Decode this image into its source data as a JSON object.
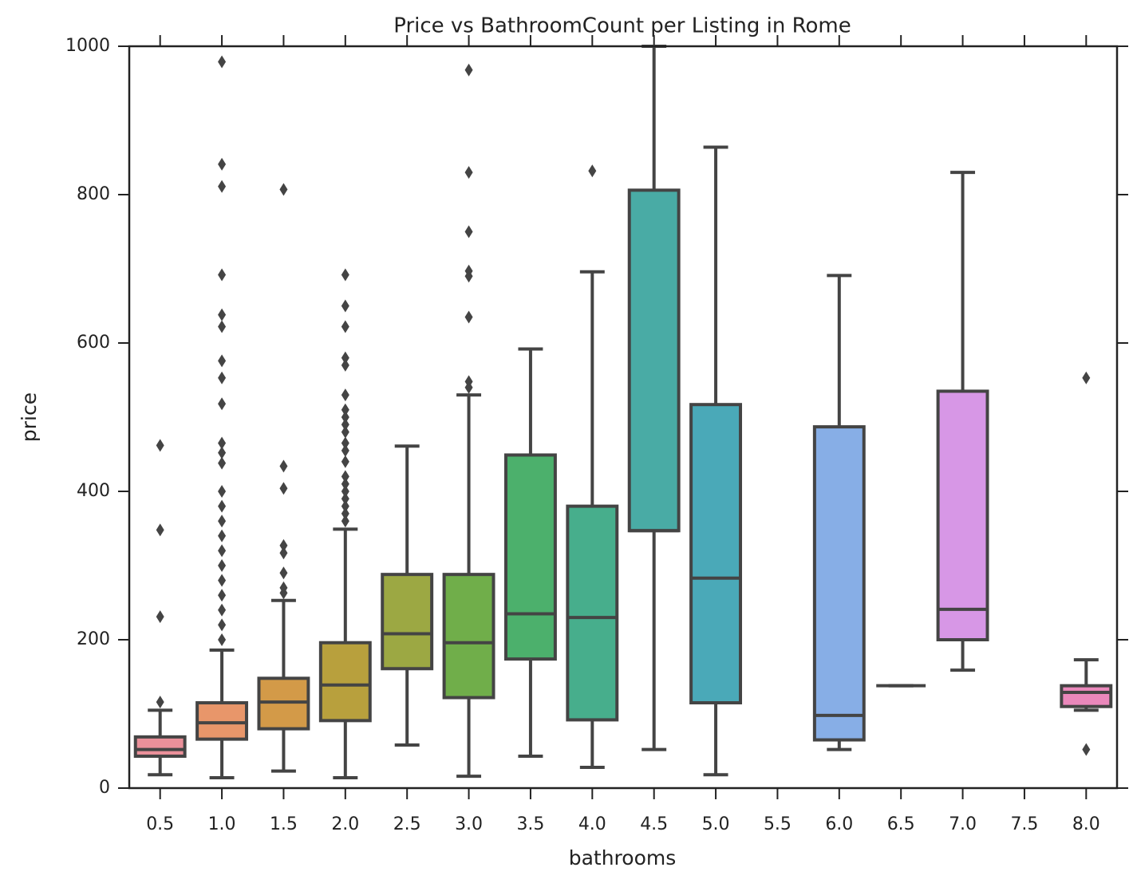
{
  "chart_data": {
    "type": "box",
    "title": "Price vs BathroomCount per Listing in Rome",
    "x_label": "bathrooms",
    "y_label": "price",
    "categories": [
      "0.5",
      "1.0",
      "1.5",
      "2.0",
      "2.5",
      "3.0",
      "3.5",
      "4.0",
      "4.5",
      "5.0",
      "5.5",
      "6.0",
      "6.5",
      "7.0",
      "7.5",
      "8.0"
    ],
    "whisker_low": [
      18,
      14,
      23,
      14,
      58,
      16,
      43,
      28,
      52,
      18,
      null,
      52,
      138,
      159,
      null,
      105
    ],
    "q1": [
      43,
      66,
      80,
      91,
      161,
      122,
      174,
      92,
      347,
      115,
      null,
      65,
      138,
      200,
      null,
      110
    ],
    "median": [
      52,
      88,
      116,
      139,
      208,
      196,
      235,
      230,
      347,
      283,
      null,
      98,
      138,
      241,
      null,
      129
    ],
    "q3": [
      69,
      115,
      148,
      196,
      288,
      288,
      449,
      380,
      806,
      517,
      null,
      487,
      138,
      535,
      null,
      138
    ],
    "whisker_high": [
      105,
      186,
      253,
      349,
      461,
      530,
      592,
      696,
      1000,
      864,
      null,
      691,
      138,
      830,
      null,
      173
    ],
    "outliers": [
      [
        116,
        231,
        348,
        462
      ],
      [
        200,
        220,
        240,
        260,
        280,
        300,
        320,
        340,
        360,
        380,
        400,
        438,
        452,
        465,
        518,
        553,
        576,
        622,
        638,
        692,
        811,
        841,
        979
      ],
      [
        263,
        270,
        290,
        317,
        327,
        404,
        434,
        807
      ],
      [
        360,
        370,
        380,
        390,
        400,
        410,
        420,
        440,
        455,
        465,
        480,
        490,
        500,
        510,
        530,
        570,
        580,
        622,
        650,
        692
      ],
      [],
      [
        540,
        548,
        635,
        690,
        697,
        750,
        830,
        968
      ],
      [],
      [
        832
      ],
      [],
      [],
      [],
      [],
      [],
      [],
      [],
      [
        52,
        553
      ]
    ],
    "colors": [
      "#ea909a",
      "#e8966a",
      "#d39a48",
      "#b8a03d",
      "#9ca843",
      "#70ae4a",
      "#4cb06c",
      "#47ae8c",
      "#49aba5",
      "#4aa9b8",
      null,
      "#87aee6",
      "#a99be8",
      "#d797e6",
      null,
      "#ea88bb"
    ],
    "ylim": [
      0,
      1000
    ],
    "yticks": [
      0,
      200,
      400,
      600,
      800,
      1000
    ]
  }
}
